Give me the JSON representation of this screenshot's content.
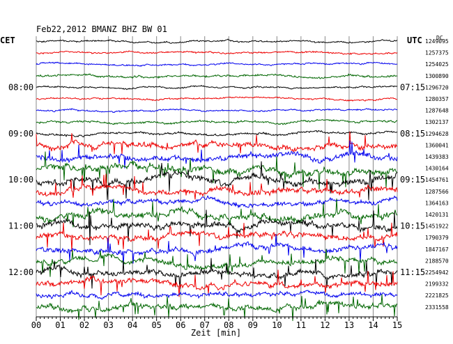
{
  "chart_data": {
    "type": "line",
    "title": "Feb22,2012   BMANZ BHZ BW 01",
    "left_timezone": "CET",
    "right_timezone": "UTC",
    "corner_label": "DC",
    "xlabel": "Zeit [min]",
    "xlim": [
      0,
      15
    ],
    "x_ticks": [
      "00",
      "01",
      "02",
      "03",
      "04",
      "05",
      "06",
      "07",
      "08",
      "09",
      "10",
      "11",
      "12",
      "13",
      "14",
      "15"
    ],
    "left_hour_labels": [
      {
        "row": 4,
        "label": "08:00"
      },
      {
        "row": 8,
        "label": "09:00"
      },
      {
        "row": 12,
        "label": "10:00"
      },
      {
        "row": 16,
        "label": "11:00"
      },
      {
        "row": 20,
        "label": "12:00"
      }
    ],
    "right_hour_labels": [
      {
        "row": 4,
        "label": "07:15"
      },
      {
        "row": 8,
        "label": "08:15"
      },
      {
        "row": 12,
        "label": "09:15"
      },
      {
        "row": 16,
        "label": "10:15"
      },
      {
        "row": 20,
        "label": "11:15"
      }
    ],
    "trace_colors": [
      "#000000",
      "#ee0000",
      "#0000ee",
      "#006600"
    ],
    "traces": [
      {
        "offset": "1249095",
        "amp": 1.5
      },
      {
        "offset": "1257375",
        "amp": 1.5
      },
      {
        "offset": "1254025",
        "amp": 1.5
      },
      {
        "offset": "1300890",
        "amp": 2.0
      },
      {
        "offset": "1296720",
        "amp": 1.5
      },
      {
        "offset": "1280357",
        "amp": 1.5
      },
      {
        "offset": "1287648",
        "amp": 1.5
      },
      {
        "offset": "1302137",
        "amp": 2.0
      },
      {
        "offset": "1294628",
        "amp": 2.0
      },
      {
        "offset": "1360041",
        "amp": 5.0
      },
      {
        "offset": "1439383",
        "amp": 5.0
      },
      {
        "offset": "1430164",
        "amp": 6.0
      },
      {
        "offset": "1454761",
        "amp": 6.0
      },
      {
        "offset": "1287566",
        "amp": 5.0
      },
      {
        "offset": "1364163",
        "amp": 4.0
      },
      {
        "offset": "1420131",
        "amp": 6.0
      },
      {
        "offset": "1451922",
        "amp": 6.0
      },
      {
        "offset": "1790379",
        "amp": 5.0
      },
      {
        "offset": "1847167",
        "amp": 5.0
      },
      {
        "offset": "2188570",
        "amp": 5.0
      },
      {
        "offset": "2254942",
        "amp": 5.0
      },
      {
        "offset": "2199332",
        "amp": 5.0
      },
      {
        "offset": "2221825",
        "amp": 4.0
      },
      {
        "offset": "2331558",
        "amp": 5.0
      }
    ]
  }
}
